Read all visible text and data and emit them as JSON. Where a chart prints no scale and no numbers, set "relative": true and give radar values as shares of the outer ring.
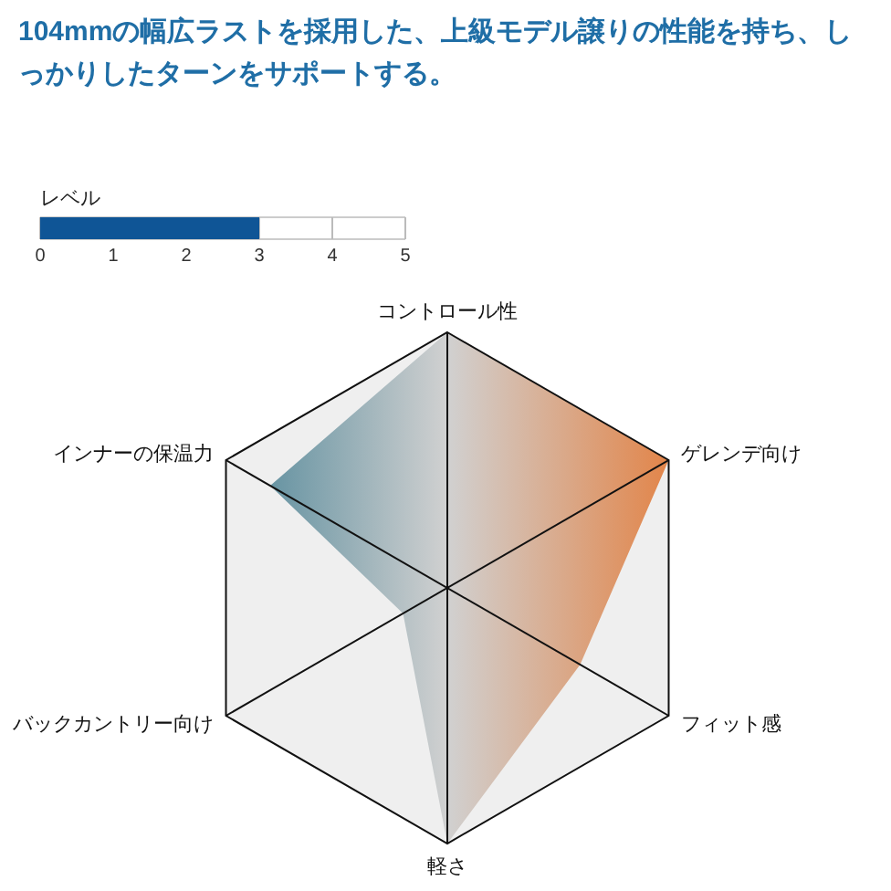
{
  "chart_data": [
    {
      "type": "bar",
      "orientation": "horizontal",
      "title": "104mmの幅広ラストを採用した、上級モデル譲りの性能を持ち、しっかりしたターンをサポートする。",
      "subtitle": "レベル",
      "categories": [
        null
      ],
      "values": [
        3
      ],
      "color": "#0f5596",
      "xlim": [
        0,
        5
      ],
      "xticks": [
        0,
        1,
        2,
        3,
        4,
        5
      ]
    },
    {
      "type": "radar",
      "categories": [
        "コントロール性",
        "ゲレンデ向け",
        "フィット感",
        "軽さ",
        "バックカントリー向け",
        "インナーの保温力"
      ],
      "relative": true,
      "series": [
        {
          "color": "#e4732b",
          "values": [
            1,
            1,
            0.6,
            1,
            0.2,
            0.8
          ]
        }
      ]
    }
  ]
}
